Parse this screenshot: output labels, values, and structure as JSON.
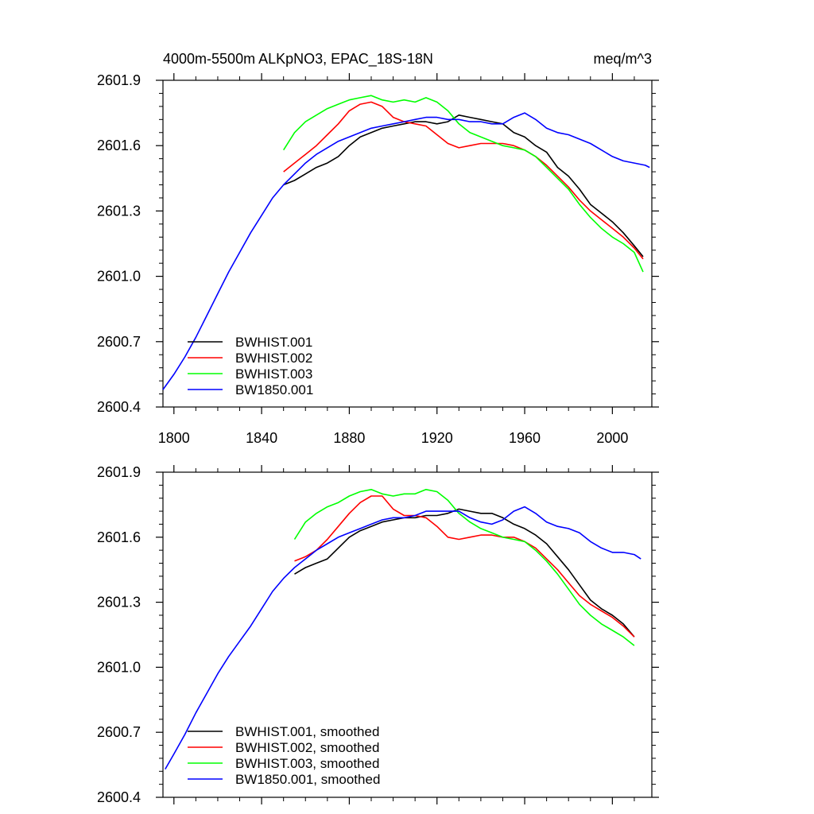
{
  "chart_data": [
    {
      "type": "line",
      "title": "4000m-5500m ALKpNO3, EPAC_18S-18N",
      "units": "meq/m^3",
      "xlabel": "",
      "ylabel": "",
      "xlim": [
        1795,
        2018
      ],
      "ylim": [
        2600.4,
        2601.9
      ],
      "xticks": [
        1800,
        1840,
        1880,
        1920,
        1960,
        2000
      ],
      "yticks": [
        2600.4,
        2600.7,
        2601.0,
        2601.3,
        2601.6,
        2601.9
      ],
      "ytick_labels": [
        "2600.4",
        "2600.7",
        "2601.0",
        "2601.3",
        "2601.6",
        "2601.9"
      ],
      "xtick_labels": [
        "1800",
        "1840",
        "1880",
        "1920",
        "1960",
        "2000"
      ],
      "legend_position": "bottom-left",
      "series": [
        {
          "name": "BWHIST.001",
          "color": "#000000",
          "x": [
            1850,
            1855,
            1860,
            1865,
            1870,
            1875,
            1880,
            1885,
            1890,
            1895,
            1900,
            1905,
            1910,
            1915,
            1920,
            1925,
            1930,
            1935,
            1940,
            1945,
            1950,
            1955,
            1960,
            1965,
            1970,
            1975,
            1980,
            1985,
            1990,
            1995,
            2000,
            2005,
            2010,
            2014
          ],
          "y": [
            2601.42,
            2601.44,
            2601.47,
            2601.5,
            2601.52,
            2601.55,
            2601.6,
            2601.64,
            2601.66,
            2601.68,
            2601.69,
            2601.7,
            2601.71,
            2601.71,
            2601.7,
            2601.71,
            2601.74,
            2601.73,
            2601.72,
            2601.71,
            2601.7,
            2601.66,
            2601.64,
            2601.6,
            2601.57,
            2601.5,
            2601.46,
            2601.4,
            2601.33,
            2601.29,
            2601.25,
            2601.2,
            2601.14,
            2601.09
          ]
        },
        {
          "name": "BWHIST.002",
          "color": "#ff0000",
          "x": [
            1850,
            1855,
            1860,
            1865,
            1870,
            1875,
            1880,
            1885,
            1890,
            1895,
            1900,
            1905,
            1910,
            1915,
            1920,
            1925,
            1930,
            1935,
            1940,
            1945,
            1950,
            1955,
            1960,
            1965,
            1970,
            1975,
            1980,
            1985,
            1990,
            1995,
            2000,
            2005,
            2010,
            2014
          ],
          "y": [
            2601.48,
            2601.52,
            2601.56,
            2601.6,
            2601.65,
            2601.7,
            2601.76,
            2601.79,
            2601.8,
            2601.78,
            2601.73,
            2601.71,
            2601.7,
            2601.69,
            2601.65,
            2601.61,
            2601.59,
            2601.6,
            2601.61,
            2601.61,
            2601.61,
            2601.6,
            2601.58,
            2601.55,
            2601.51,
            2601.46,
            2601.41,
            2601.35,
            2601.3,
            2601.26,
            2601.22,
            2601.18,
            2601.13,
            2601.08
          ]
        },
        {
          "name": "BWHIST.003",
          "color": "#00ff00",
          "x": [
            1850,
            1855,
            1860,
            1865,
            1870,
            1875,
            1880,
            1885,
            1890,
            1895,
            1900,
            1905,
            1910,
            1915,
            1920,
            1925,
            1930,
            1935,
            1940,
            1945,
            1950,
            1955,
            1960,
            1965,
            1970,
            1975,
            1980,
            1985,
            1990,
            1995,
            2000,
            2005,
            2010,
            2014
          ],
          "y": [
            2601.58,
            2601.66,
            2601.71,
            2601.74,
            2601.77,
            2601.79,
            2601.81,
            2601.82,
            2601.83,
            2601.81,
            2601.8,
            2601.81,
            2601.8,
            2601.82,
            2601.8,
            2601.76,
            2601.7,
            2601.66,
            2601.64,
            2601.62,
            2601.6,
            2601.59,
            2601.58,
            2601.55,
            2601.5,
            2601.45,
            2601.4,
            2601.33,
            2601.27,
            2601.22,
            2601.18,
            2601.15,
            2601.11,
            2601.02
          ]
        },
        {
          "name": "BW1850.001",
          "color": "#0000ff",
          "x": [
            1795,
            1800,
            1805,
            1810,
            1815,
            1820,
            1825,
            1830,
            1835,
            1840,
            1845,
            1850,
            1855,
            1860,
            1865,
            1870,
            1875,
            1880,
            1885,
            1890,
            1895,
            1900,
            1905,
            1910,
            1915,
            1920,
            1925,
            1930,
            1935,
            1940,
            1945,
            1950,
            1955,
            1960,
            1965,
            1970,
            1975,
            1980,
            1985,
            1990,
            1995,
            2000,
            2005,
            2010,
            2015,
            2017
          ],
          "y": [
            2600.48,
            2600.55,
            2600.63,
            2600.72,
            2600.82,
            2600.92,
            2601.02,
            2601.11,
            2601.2,
            2601.28,
            2601.36,
            2601.42,
            2601.47,
            2601.52,
            2601.56,
            2601.59,
            2601.62,
            2601.64,
            2601.66,
            2601.68,
            2601.69,
            2601.7,
            2601.71,
            2601.72,
            2601.73,
            2601.73,
            2601.72,
            2601.72,
            2601.71,
            2601.71,
            2601.7,
            2601.7,
            2601.73,
            2601.75,
            2601.72,
            2601.68,
            2601.66,
            2601.65,
            2601.63,
            2601.61,
            2601.58,
            2601.55,
            2601.53,
            2601.52,
            2601.51,
            2601.5
          ]
        }
      ]
    },
    {
      "type": "line",
      "title": "",
      "xlabel": "",
      "ylabel": "",
      "xlim": [
        1795,
        2018
      ],
      "ylim": [
        2600.4,
        2601.9
      ],
      "xticks": [
        1800,
        1840,
        1880,
        1920,
        1960,
        2000
      ],
      "yticks": [
        2600.4,
        2600.7,
        2601.0,
        2601.3,
        2601.6,
        2601.9
      ],
      "ytick_labels": [
        "2600.4",
        "2600.7",
        "2601.0",
        "2601.3",
        "2601.6",
        "2601.9"
      ],
      "legend_position": "bottom-left",
      "series": [
        {
          "name": "BWHIST.001, smoothed",
          "color": "#000000",
          "x": [
            1855,
            1860,
            1865,
            1870,
            1875,
            1880,
            1885,
            1890,
            1895,
            1900,
            1905,
            1910,
            1915,
            1920,
            1925,
            1930,
            1935,
            1940,
            1945,
            1950,
            1955,
            1960,
            1965,
            1970,
            1975,
            1980,
            1985,
            1990,
            1995,
            2000,
            2005,
            2010
          ],
          "y": [
            2601.43,
            2601.46,
            2601.48,
            2601.5,
            2601.55,
            2601.6,
            2601.63,
            2601.65,
            2601.67,
            2601.68,
            2601.69,
            2601.69,
            2601.7,
            2601.7,
            2601.71,
            2601.73,
            2601.72,
            2601.71,
            2601.71,
            2601.69,
            2601.66,
            2601.64,
            2601.61,
            2601.57,
            2601.51,
            2601.45,
            2601.38,
            2601.31,
            2601.27,
            2601.24,
            2601.2,
            2601.14
          ]
        },
        {
          "name": "BWHIST.002, smoothed",
          "color": "#ff0000",
          "x": [
            1855,
            1860,
            1865,
            1870,
            1875,
            1880,
            1885,
            1890,
            1895,
            1900,
            1905,
            1910,
            1915,
            1920,
            1925,
            1930,
            1935,
            1940,
            1945,
            1950,
            1955,
            1960,
            1965,
            1970,
            1975,
            1980,
            1985,
            1990,
            1995,
            2000,
            2005,
            2010
          ],
          "y": [
            2601.49,
            2601.51,
            2601.54,
            2601.59,
            2601.65,
            2601.71,
            2601.76,
            2601.79,
            2601.79,
            2601.73,
            2601.7,
            2601.7,
            2601.69,
            2601.65,
            2601.6,
            2601.59,
            2601.6,
            2601.61,
            2601.61,
            2601.6,
            2601.6,
            2601.58,
            2601.55,
            2601.5,
            2601.45,
            2601.39,
            2601.33,
            2601.29,
            2601.26,
            2601.23,
            2601.19,
            2601.14
          ]
        },
        {
          "name": "BWHIST.003, smoothed",
          "color": "#00ff00",
          "x": [
            1855,
            1860,
            1865,
            1870,
            1875,
            1880,
            1885,
            1890,
            1895,
            1900,
            1905,
            1910,
            1915,
            1920,
            1925,
            1930,
            1935,
            1940,
            1945,
            1950,
            1955,
            1960,
            1965,
            1970,
            1975,
            1980,
            1985,
            1990,
            1995,
            2000,
            2005,
            2010
          ],
          "y": [
            2601.59,
            2601.67,
            2601.71,
            2601.74,
            2601.76,
            2601.79,
            2601.81,
            2601.82,
            2601.8,
            2601.79,
            2601.8,
            2601.8,
            2601.82,
            2601.81,
            2601.77,
            2601.71,
            2601.67,
            2601.64,
            2601.62,
            2601.6,
            2601.59,
            2601.58,
            2601.54,
            2601.49,
            2601.43,
            2601.36,
            2601.29,
            2601.24,
            2601.2,
            2601.17,
            2601.14,
            2601.1
          ]
        },
        {
          "name": "BW1850.001, smoothed",
          "color": "#0000ff",
          "x": [
            1796,
            1800,
            1805,
            1810,
            1815,
            1820,
            1825,
            1830,
            1835,
            1840,
            1845,
            1850,
            1855,
            1860,
            1865,
            1870,
            1875,
            1880,
            1885,
            1890,
            1895,
            1900,
            1905,
            1910,
            1915,
            1920,
            1925,
            1930,
            1935,
            1940,
            1945,
            1950,
            1955,
            1960,
            1965,
            1970,
            1975,
            1980,
            1985,
            1990,
            1995,
            2000,
            2005,
            2010,
            2013
          ],
          "y": [
            2600.53,
            2600.6,
            2600.69,
            2600.79,
            2600.88,
            2600.97,
            2601.05,
            2601.12,
            2601.19,
            2601.27,
            2601.35,
            2601.41,
            2601.46,
            2601.5,
            2601.54,
            2601.57,
            2601.6,
            2601.62,
            2601.64,
            2601.66,
            2601.68,
            2601.69,
            2601.69,
            2601.7,
            2601.72,
            2601.72,
            2601.72,
            2601.72,
            2601.69,
            2601.67,
            2601.66,
            2601.68,
            2601.72,
            2601.74,
            2601.71,
            2601.67,
            2601.65,
            2601.64,
            2601.62,
            2601.58,
            2601.55,
            2601.53,
            2601.53,
            2601.52,
            2601.5
          ]
        }
      ]
    }
  ]
}
